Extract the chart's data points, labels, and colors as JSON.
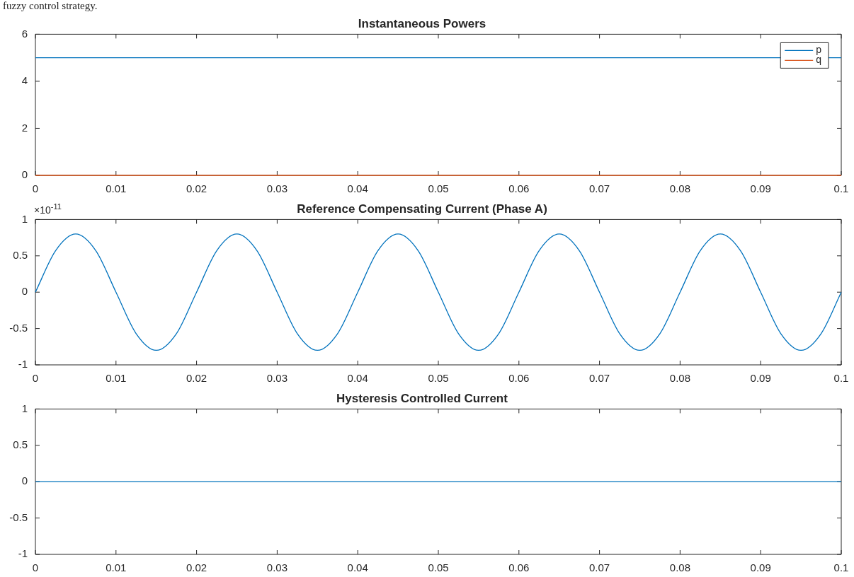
{
  "chart_data": [
    {
      "type": "line",
      "title": "Instantaneous Powers",
      "annotations": [
        "fuzzy control strategy."
      ],
      "x": [
        0,
        0.1
      ],
      "series": [
        {
          "name": "p",
          "color": "#0072bd",
          "values": [
            5,
            5
          ]
        },
        {
          "name": "q",
          "color": "#d95319",
          "values": [
            0,
            0
          ]
        }
      ],
      "xlim": [
        0,
        0.1
      ],
      "xticks": [
        0,
        0.01,
        0.02,
        0.03,
        0.04,
        0.05,
        0.06,
        0.07,
        0.08,
        0.09,
        0.1
      ],
      "ylim": [
        0,
        6
      ],
      "yticks": [
        0,
        2,
        4,
        6
      ],
      "legend": "top right",
      "grid": false
    },
    {
      "type": "line",
      "title": "Reference Compensating Current (Phase A)",
      "annotations": [
        "×10$^{-11}$"
      ],
      "x": [
        0,
        0.0025,
        0.005,
        0.0075,
        0.01,
        0.0125,
        0.015,
        0.0175,
        0.02,
        0.0225,
        0.025,
        0.0275,
        0.03,
        0.0325,
        0.035,
        0.0375,
        0.04,
        0.0425,
        0.045,
        0.0475,
        0.05,
        0.0525,
        0.055,
        0.0575,
        0.06,
        0.0625,
        0.065,
        0.0675,
        0.07,
        0.0725,
        0.075,
        0.0775,
        0.08,
        0.0825,
        0.085,
        0.0875,
        0.09,
        0.0925,
        0.095,
        0.0975,
        0.1
      ],
      "series": [
        {
          "color": "#0072bd",
          "values": [
            0,
            0.57,
            0.8,
            0.57,
            0,
            -0.57,
            -0.8,
            -0.57,
            0,
            0.57,
            0.8,
            0.57,
            0,
            -0.57,
            -0.8,
            -0.57,
            0,
            0.57,
            0.8,
            0.57,
            0,
            -0.57,
            -0.8,
            -0.57,
            0,
            0.57,
            0.8,
            0.57,
            0,
            -0.57,
            -0.8,
            -0.57,
            0,
            0.57,
            0.8,
            0.57,
            0,
            -0.57,
            -0.8,
            -0.57,
            0
          ]
        }
      ],
      "xlim": [
        0,
        0.1
      ],
      "xticks": [
        0,
        0.01,
        0.02,
        0.03,
        0.04,
        0.05,
        0.06,
        0.07,
        0.08,
        0.09,
        0.1
      ],
      "ylim": [
        -1,
        1
      ],
      "yticks": [
        -1,
        -0.5,
        0,
        0.5,
        1
      ],
      "grid": false
    },
    {
      "type": "line",
      "title": "Hysteresis Controlled Current",
      "x": [
        0,
        0.1
      ],
      "series": [
        {
          "color": "#0072bd",
          "values": [
            0,
            0
          ]
        }
      ],
      "xlim": [
        0,
        0.1
      ],
      "xticks": [
        0,
        0.01,
        0.02,
        0.03,
        0.04,
        0.05,
        0.06,
        0.07,
        0.08,
        0.09,
        0.1
      ],
      "ylim": [
        -1,
        1
      ],
      "yticks": [
        -1,
        -0.5,
        0,
        0.5,
        1
      ],
      "grid": false
    }
  ]
}
